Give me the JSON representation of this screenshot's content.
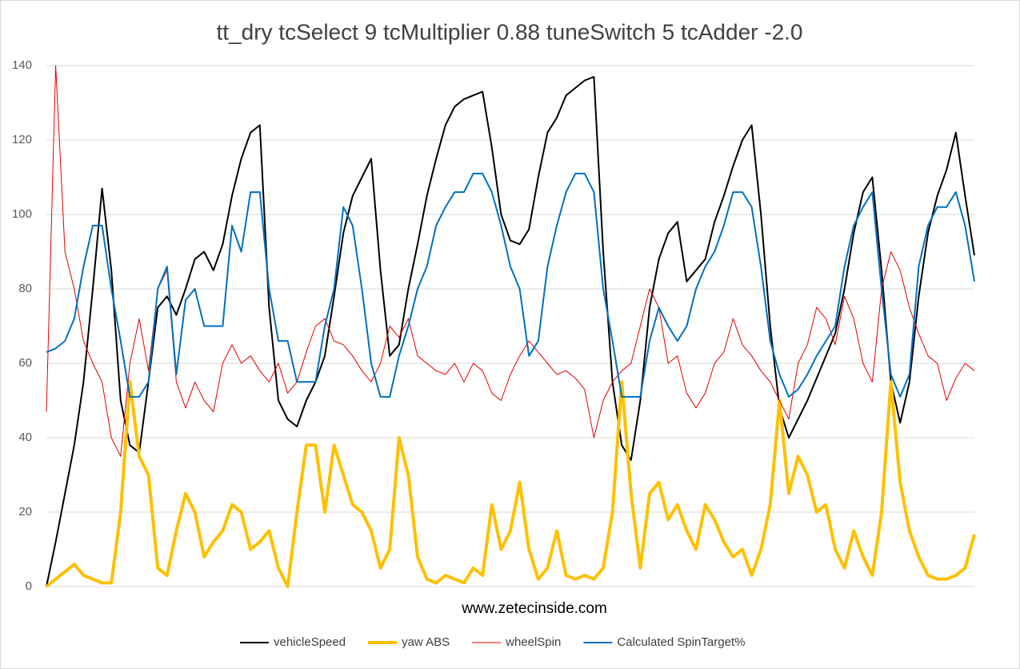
{
  "chart_data": {
    "type": "line",
    "title": "tt_dry tcSelect 9 tcMultiplier 0.88 tuneSwitch 5 tcAdder -2.0",
    "x_label": "www.zetecinside.com",
    "categories": [
      null,
      null,
      null,
      null,
      null,
      null,
      null,
      null,
      null,
      null,
      null,
      null,
      null,
      null,
      null,
      null,
      null,
      null,
      null,
      null,
      null,
      null,
      null,
      null,
      null,
      null,
      null,
      null,
      null,
      null,
      null,
      null,
      null,
      null,
      null,
      null,
      null,
      null,
      null,
      null,
      null,
      null,
      null,
      null,
      null,
      null,
      null,
      null,
      null,
      null,
      null,
      null,
      null,
      null,
      null,
      null,
      null,
      null,
      null,
      null,
      null,
      null,
      null,
      null,
      null,
      null,
      null,
      null,
      null,
      null,
      null,
      null,
      null,
      null,
      null,
      null,
      null,
      null,
      null,
      null,
      null,
      null,
      null,
      null,
      null,
      null,
      null,
      null,
      null,
      null,
      null,
      null,
      null,
      null,
      null,
      null,
      null,
      null,
      null,
      null,
      null
    ],
    "ylim": [
      0,
      140
    ],
    "yticks": [
      0,
      20,
      40,
      60,
      80,
      100,
      120,
      140
    ],
    "grid": true,
    "legend": "bottom",
    "series": [
      {
        "name": "vehicleSpeed",
        "color": "#000000",
        "values": [
          0,
          12,
          25,
          38,
          55,
          80,
          107,
          85,
          50,
          38,
          36,
          55,
          75,
          78,
          73,
          80,
          88,
          90,
          85,
          92,
          105,
          115,
          122,
          124,
          75,
          50,
          45,
          43,
          50,
          55,
          62,
          78,
          95,
          105,
          110,
          115,
          85,
          62,
          65,
          80,
          92,
          105,
          115,
          124,
          129,
          131,
          132,
          133,
          118,
          100,
          93,
          92,
          96,
          110,
          122,
          126,
          132,
          134,
          136,
          137,
          90,
          55,
          38,
          34,
          50,
          75,
          88,
          95,
          98,
          82,
          85,
          88,
          98,
          105,
          113,
          120,
          124,
          100,
          70,
          48,
          40,
          45,
          50,
          56,
          62,
          68,
          80,
          95,
          106,
          110,
          85,
          55,
          44,
          55,
          78,
          95,
          105,
          112,
          122,
          105,
          89
        ]
      },
      {
        "name": "yaw ABS",
        "color": "#ffc000",
        "values": [
          0,
          2,
          4,
          6,
          3,
          2,
          1,
          1,
          20,
          55,
          35,
          30,
          5,
          3,
          15,
          25,
          20,
          8,
          12,
          15,
          22,
          20,
          10,
          12,
          15,
          5,
          0,
          20,
          38,
          38,
          20,
          38,
          30,
          22,
          20,
          15,
          5,
          10,
          40,
          30,
          8,
          2,
          1,
          3,
          2,
          1,
          5,
          3,
          22,
          10,
          15,
          28,
          10,
          2,
          5,
          15,
          3,
          2,
          3,
          2,
          5,
          20,
          55,
          25,
          5,
          25,
          28,
          18,
          22,
          15,
          10,
          22,
          18,
          12,
          8,
          10,
          3,
          10,
          22,
          50,
          25,
          35,
          30,
          20,
          22,
          10,
          5,
          15,
          8,
          3,
          20,
          55,
          28,
          15,
          8,
          3,
          2,
          2,
          3,
          5,
          14
        ]
      },
      {
        "name": "wheelSpin",
        "color": "#e00000",
        "values": [
          47,
          140,
          90,
          80,
          66,
          60,
          55,
          40,
          35,
          60,
          72,
          58,
          80,
          85,
          55,
          48,
          55,
          50,
          47,
          60,
          65,
          60,
          62,
          58,
          55,
          60,
          52,
          55,
          63,
          70,
          72,
          66,
          65,
          62,
          58,
          55,
          60,
          70,
          67,
          72,
          62,
          60,
          58,
          57,
          60,
          55,
          60,
          58,
          52,
          50,
          57,
          62,
          66,
          63,
          60,
          57,
          58,
          56,
          53,
          40,
          50,
          55,
          58,
          60,
          70,
          80,
          75,
          60,
          62,
          52,
          48,
          52,
          60,
          63,
          72,
          65,
          62,
          58,
          55,
          50,
          45,
          60,
          65,
          75,
          72,
          65,
          78,
          72,
          60,
          55,
          80,
          90,
          85,
          75,
          68,
          62,
          60,
          50,
          56,
          60,
          58
        ]
      },
      {
        "name": "Calculated SpinTarget%",
        "color": "#0070c0",
        "values": [
          63,
          64,
          66,
          72,
          86,
          97,
          97,
          80,
          66,
          51,
          51,
          55,
          80,
          86,
          57,
          77,
          80,
          70,
          70,
          70,
          97,
          90,
          106,
          106,
          80,
          66,
          66,
          55,
          55,
          55,
          70,
          80,
          102,
          97,
          80,
          60,
          51,
          51,
          62,
          70,
          80,
          86,
          97,
          102,
          106,
          106,
          111,
          111,
          106,
          97,
          86,
          80,
          62,
          66,
          86,
          97,
          106,
          111,
          111,
          106,
          80,
          66,
          51,
          51,
          51,
          66,
          75,
          70,
          66,
          70,
          80,
          86,
          90,
          97,
          106,
          106,
          102,
          86,
          66,
          57,
          51,
          53,
          57,
          62,
          66,
          70,
          86,
          97,
          102,
          106,
          80,
          57,
          51,
          57,
          86,
          97,
          102,
          102,
          106,
          97,
          82
        ]
      }
    ]
  }
}
